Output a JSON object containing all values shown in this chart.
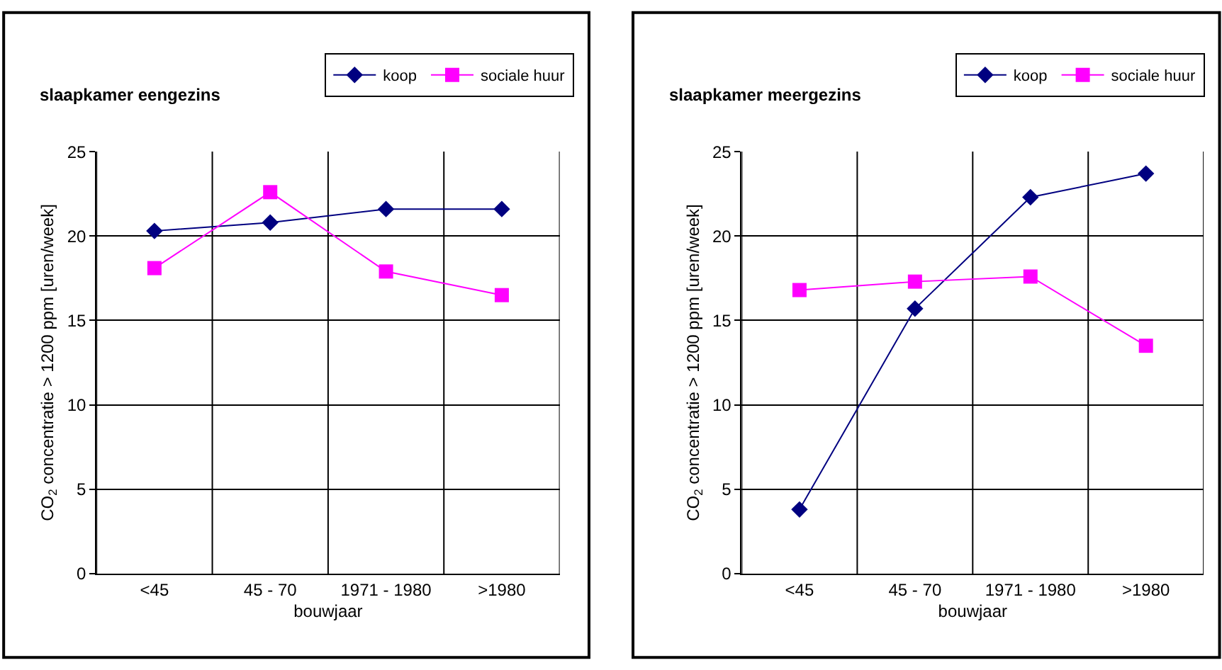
{
  "chart_data": [
    {
      "type": "line",
      "title": "slaapkamer eengezins",
      "xlabel": "bouwjaar",
      "ylabel": "CO$_{2}$ concentratie > 1200 ppm [uren/week]",
      "categories": [
        "<45",
        "45 - 70",
        "1971 - 1980",
        ">1980"
      ],
      "ylim": [
        0,
        25
      ],
      "yticks": [
        0,
        5,
        10,
        15,
        20,
        25
      ],
      "grid": true,
      "legend": "top right",
      "line_style": "solid",
      "series": [
        {
          "name": "koop",
          "color": "#000080",
          "marker": "diamond",
          "values": [
            20.3,
            20.8,
            21.6,
            21.6
          ]
        },
        {
          "name": "sociale huur",
          "color": "#ff00ff",
          "marker": "square",
          "values": [
            18.1,
            22.6,
            17.9,
            16.5
          ]
        }
      ]
    },
    {
      "type": "line",
      "title": "slaapkamer meergezins",
      "xlabel": "bouwjaar",
      "ylabel": "CO$_{2}$ concentratie > 1200 ppm [uren/week]",
      "categories": [
        "<45",
        "45 - 70",
        "1971 - 1980",
        ">1980"
      ],
      "ylim": [
        0,
        25
      ],
      "yticks": [
        0,
        5,
        10,
        15,
        20,
        25
      ],
      "grid": true,
      "legend": "top right",
      "line_style": "solid",
      "series": [
        {
          "name": "koop",
          "color": "#000080",
          "marker": "diamond",
          "values": [
            3.8,
            15.7,
            22.3,
            23.7
          ]
        },
        {
          "name": "sociale huur",
          "color": "#ff00ff",
          "marker": "square",
          "values": [
            16.8,
            17.3,
            17.6,
            13.5
          ]
        }
      ]
    }
  ]
}
